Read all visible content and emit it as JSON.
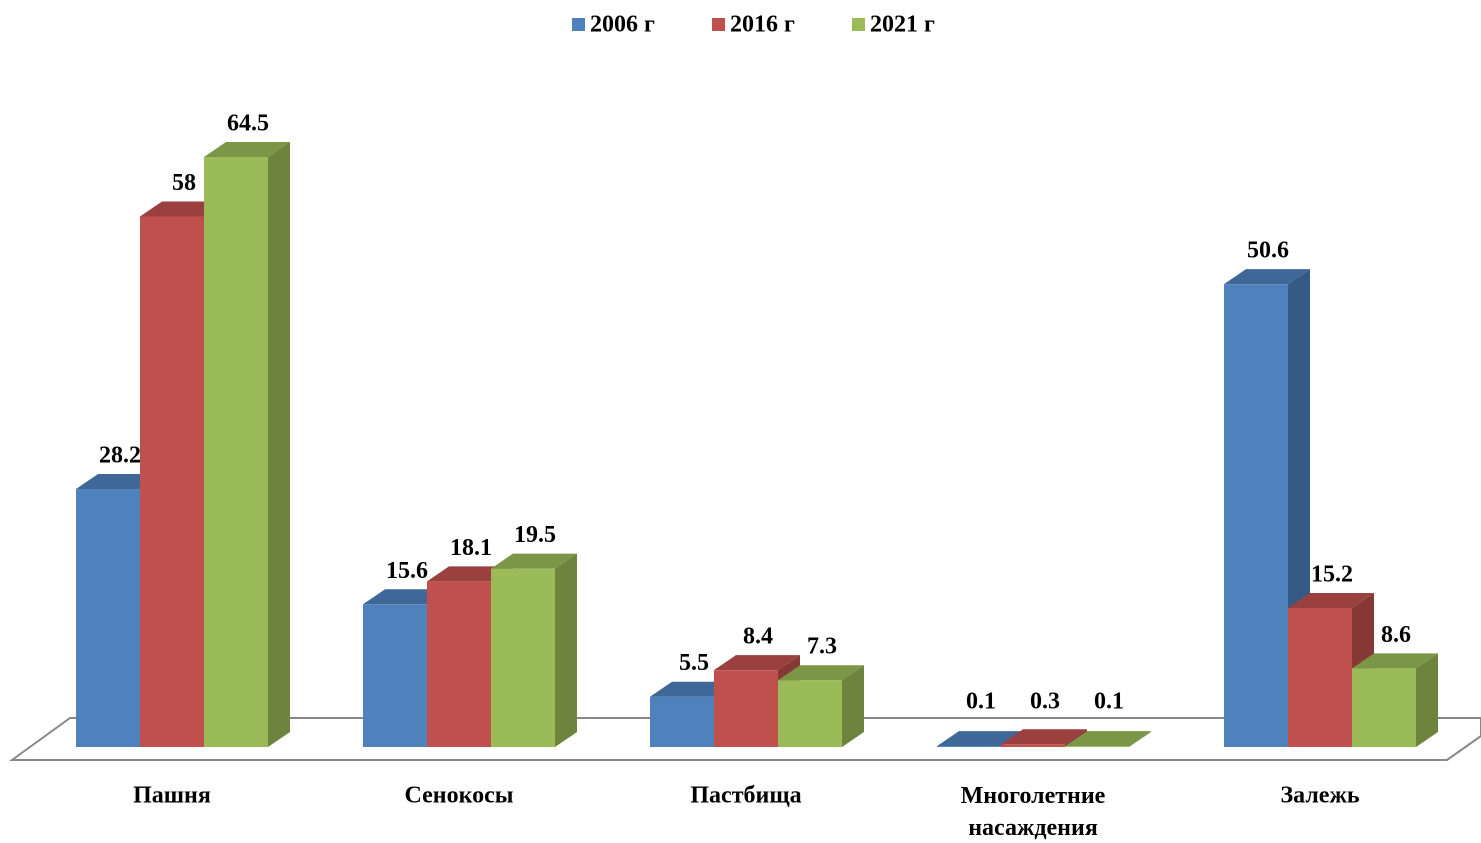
{
  "chart_data": {
    "type": "bar3d",
    "categories": [
      "Пашня",
      "Сенокосы",
      "Пастбища",
      "Многолетние насаждения",
      "Залежь"
    ],
    "series": [
      {
        "name": "2006 г",
        "color": "#4f81bd",
        "values": [
          28.2,
          15.6,
          5.5,
          0.1,
          50.6
        ]
      },
      {
        "name": "2016 г",
        "color": "#c0504d",
        "values": [
          58,
          18.1,
          8.4,
          0.3,
          15.2
        ]
      },
      {
        "name": "2021 г",
        "color": "#9bbb59",
        "values": [
          64.5,
          19.5,
          7.3,
          0.1,
          8.6
        ]
      }
    ],
    "legend": "top"
  }
}
